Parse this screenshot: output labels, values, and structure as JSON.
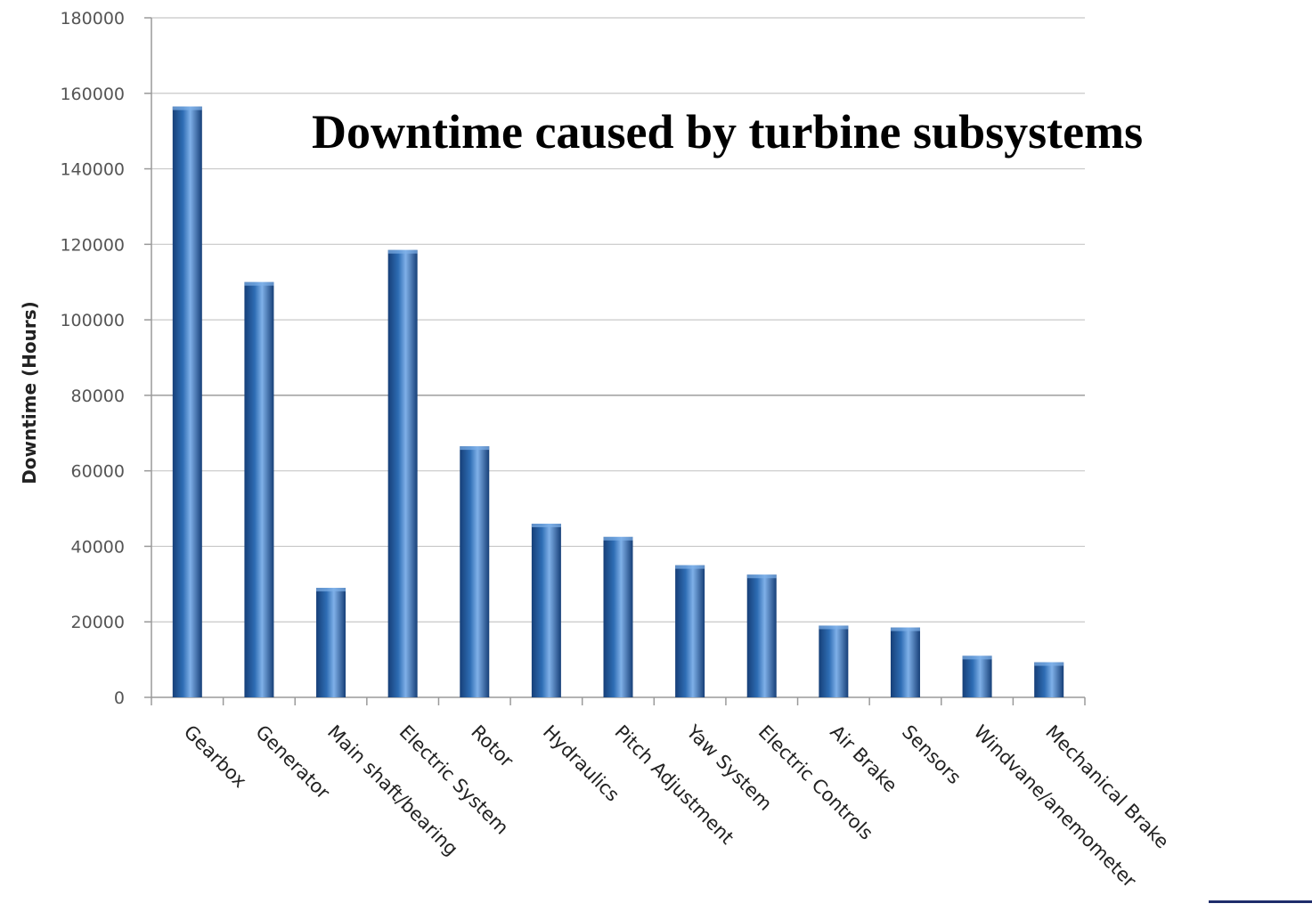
{
  "chart_data": {
    "type": "bar",
    "title": "Downtime caused by turbine subsystems",
    "xlabel": "",
    "ylabel": "Downtime (Hours)",
    "ylim": [
      0,
      180000
    ],
    "yticks": [
      "0",
      "20000",
      "40000",
      "60000",
      "80000",
      "100000",
      "120000",
      "140000",
      "160000",
      "180000"
    ],
    "categories": [
      "Gearbox",
      "Generator",
      "Main shaft/bearing",
      "Electric System",
      "Rotor",
      "Hydraulics",
      "Pitch Adjustment",
      "Yaw System",
      "Electric Controls",
      "Air Brake",
      "Sensors",
      "Windvane/anemometer",
      "Mechanical Brake"
    ],
    "values": [
      156500,
      110000,
      29000,
      118500,
      66500,
      46000,
      42500,
      35000,
      32500,
      19000,
      18500,
      11000,
      9300
    ],
    "grid": true,
    "bar_color": "#2e6db4",
    "bar_highlight": "#7fb0e8",
    "bar_shadow": "#163f78"
  }
}
